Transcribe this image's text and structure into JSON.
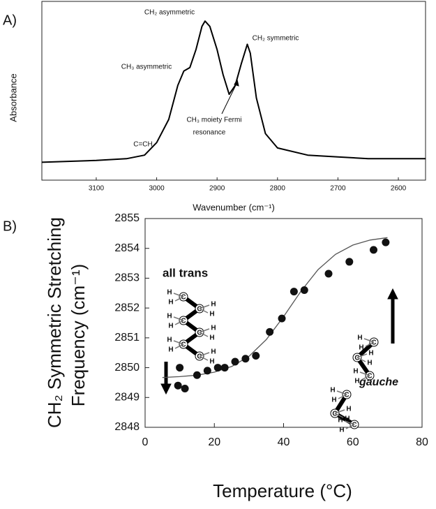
{
  "chart_data": [
    {
      "type": "line",
      "panel_label": "A)",
      "xlabel": "Wavenumber (cm⁻¹)",
      "ylabel": "Absorbance",
      "x": [
        3190,
        3100,
        3050,
        3020,
        3000,
        2980,
        2965,
        2955,
        2945,
        2935,
        2925,
        2920,
        2912,
        2900,
        2890,
        2880,
        2870,
        2860,
        2850,
        2845,
        2835,
        2820,
        2800,
        2750,
        2700,
        2650,
        2600,
        2555
      ],
      "values": [
        0.1,
        0.11,
        0.12,
        0.14,
        0.21,
        0.34,
        0.53,
        0.61,
        0.63,
        0.73,
        0.86,
        0.89,
        0.86,
        0.73,
        0.59,
        0.48,
        0.53,
        0.65,
        0.76,
        0.71,
        0.46,
        0.26,
        0.18,
        0.14,
        0.13,
        0.12,
        0.12,
        0.12
      ],
      "color": "#000000",
      "xlim": [
        3190,
        2555
      ],
      "xticks": [
        3100,
        3000,
        2900,
        2800,
        2700,
        2600
      ],
      "ylim": [
        0,
        1
      ],
      "annotations": [
        "C=CH",
        "CH₃ asymmetric",
        "CH₂ asymmetric",
        "CH₂ symmetric",
        "CH₃ moiety Fermi",
        "resonance"
      ]
    },
    {
      "type": "scatter",
      "panel_label": "B)",
      "xlabel": "Temperature (°C)",
      "ylabel": [
        "CH₂ Symmetric Stretching",
        "Frequency (cm⁻¹)"
      ],
      "x": [
        9.5,
        10,
        11.5,
        15,
        18,
        21,
        23,
        26,
        29,
        32,
        36,
        39.5,
        43,
        46,
        53,
        59,
        66,
        69.5
      ],
      "values": [
        2849.4,
        2850.0,
        2849.3,
        2849.75,
        2849.9,
        2850.0,
        2850.0,
        2850.2,
        2850.3,
        2850.4,
        2851.2,
        2851.65,
        2852.55,
        2852.6,
        2853.15,
        2853.55,
        2853.95,
        2854.2
      ],
      "color": "#111111",
      "fit_x": [
        5,
        10,
        15,
        20,
        25,
        30,
        35,
        40,
        45,
        50,
        55,
        60,
        65,
        70
      ],
      "fit_values": [
        2849.67,
        2849.7,
        2849.75,
        2849.85,
        2850.04,
        2850.38,
        2850.94,
        2851.71,
        2852.56,
        2853.29,
        2853.8,
        2854.11,
        2854.28,
        2854.36
      ],
      "fit_color": "#555555",
      "xlim": [
        0,
        80
      ],
      "xticks": [
        0,
        20,
        40,
        60,
        80
      ],
      "ylim": [
        2848,
        2855
      ],
      "yticks": [
        2848,
        2849,
        2850,
        2851,
        2852,
        2853,
        2854,
        2855
      ],
      "insets": [
        "all trans",
        "gauche"
      ],
      "atoms": {
        "carbon": "C",
        "hydrogen": "H"
      }
    }
  ]
}
